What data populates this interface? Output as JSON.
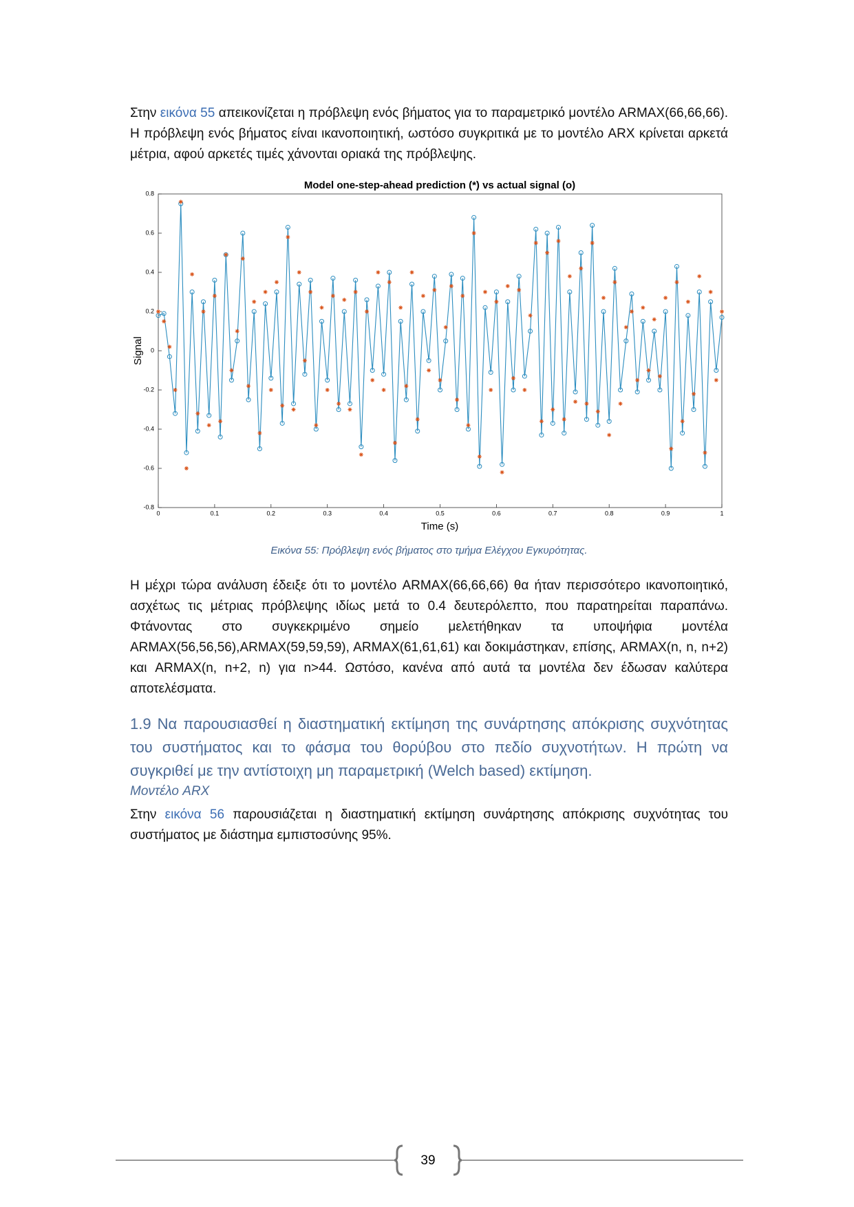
{
  "paragraph_1": {
    "lead": "Στην ",
    "link": "εικόνα 55",
    "rest": " απεικονίζεται η πρόβλεψη ενός βήματος για το παραμετρικό μοντέλο ARMAX(66,66,66). Η πρόβλεψη ενός βήματος είναι ικανοποιητική, ωστόσο συγκριτικά με το μοντέλο ARX κρίνεται αρκετά μέτρια, αφού αρκετές τιμές χάνονται οριακά της πρόβλεψης."
  },
  "chart_data": {
    "type": "line",
    "title": "Model one-step-ahead prediction (*) vs actual signal (o)",
    "x_label": "Time (s)",
    "y_label": "Signal",
    "x": [
      0,
      0.01,
      0.02,
      0.03,
      0.04,
      0.05,
      0.06,
      0.07,
      0.08,
      0.09,
      0.1,
      0.11,
      0.12,
      0.13,
      0.14,
      0.15,
      0.16,
      0.17,
      0.18,
      0.19,
      0.2,
      0.21,
      0.22,
      0.23,
      0.24,
      0.25,
      0.26,
      0.27,
      0.28,
      0.29,
      0.3,
      0.31,
      0.32,
      0.33,
      0.34,
      0.35,
      0.36,
      0.37,
      0.38,
      0.39,
      0.4,
      0.41,
      0.42,
      0.43,
      0.44,
      0.45,
      0.46,
      0.47,
      0.48,
      0.49,
      0.5,
      0.51,
      0.52,
      0.53,
      0.54,
      0.55,
      0.56,
      0.57,
      0.58,
      0.59,
      0.6,
      0.61,
      0.62,
      0.63,
      0.64,
      0.65,
      0.66,
      0.67,
      0.68,
      0.69,
      0.7,
      0.71,
      0.72,
      0.73,
      0.74,
      0.75,
      0.76,
      0.77,
      0.78,
      0.79,
      0.8,
      0.81,
      0.82,
      0.83,
      0.84,
      0.85,
      0.86,
      0.87,
      0.88,
      0.89,
      0.9,
      0.91,
      0.92,
      0.93,
      0.94,
      0.95,
      0.96,
      0.97,
      0.98,
      0.99,
      1
    ],
    "series": [
      {
        "color": "#2a8cbf",
        "marker": "circle",
        "values": [
          0.18,
          0.19,
          -0.03,
          -0.32,
          0.75,
          -0.52,
          0.3,
          -0.41,
          0.25,
          -0.33,
          0.36,
          -0.44,
          0.49,
          -0.15,
          0.05,
          0.6,
          -0.25,
          0.2,
          -0.5,
          0.24,
          -0.14,
          0.3,
          -0.37,
          0.63,
          -0.27,
          0.34,
          -0.12,
          0.36,
          -0.4,
          0.15,
          -0.15,
          0.37,
          -0.3,
          0.2,
          -0.27,
          0.36,
          -0.49,
          0.26,
          -0.1,
          0.33,
          -0.12,
          0.4,
          -0.56,
          0.15,
          -0.25,
          0.34,
          -0.41,
          0.2,
          -0.05,
          0.38,
          -0.2,
          0.05,
          0.39,
          -0.3,
          0.37,
          -0.4,
          0.68,
          -0.59,
          0.22,
          -0.11,
          0.3,
          -0.58,
          0.25,
          -0.2,
          0.38,
          -0.13,
          0.1,
          0.62,
          -0.43,
          0.6,
          -0.37,
          0.63,
          -0.42,
          0.3,
          -0.21,
          0.5,
          -0.35,
          0.64,
          -0.38,
          0.2,
          -0.36,
          0.42,
          -0.2,
          0.05,
          0.29,
          -0.21,
          0.15,
          -0.15,
          0.1,
          -0.2,
          0.2,
          -0.6,
          0.43,
          -0.42,
          0.18,
          -0.3,
          0.3,
          -0.59,
          0.25,
          -0.1,
          0.17
        ]
      },
      {
        "color": "#d95319",
        "marker": "asterisk",
        "values": [
          0.2,
          0.15,
          0.02,
          -0.2,
          0.76,
          -0.6,
          0.39,
          -0.32,
          0.2,
          -0.38,
          0.28,
          -0.36,
          0.49,
          -0.1,
          0.1,
          0.47,
          -0.18,
          0.25,
          -0.42,
          0.3,
          -0.2,
          0.35,
          -0.28,
          0.58,
          -0.3,
          0.4,
          -0.05,
          0.3,
          -0.38,
          0.22,
          -0.2,
          0.28,
          -0.27,
          0.26,
          -0.3,
          0.3,
          -0.53,
          0.2,
          -0.15,
          0.4,
          -0.2,
          0.35,
          -0.47,
          0.22,
          -0.18,
          0.4,
          -0.35,
          0.28,
          -0.1,
          0.31,
          -0.15,
          0.12,
          0.33,
          -0.25,
          0.28,
          -0.38,
          0.6,
          -0.54,
          0.3,
          -0.2,
          0.25,
          -0.62,
          0.33,
          -0.14,
          0.31,
          -0.2,
          0.18,
          0.55,
          -0.36,
          0.5,
          -0.3,
          0.56,
          -0.35,
          0.38,
          -0.26,
          0.42,
          -0.27,
          0.55,
          -0.31,
          0.27,
          -0.43,
          0.35,
          -0.27,
          0.12,
          0.2,
          -0.15,
          0.22,
          -0.1,
          0.16,
          -0.13,
          0.27,
          -0.5,
          0.35,
          -0.36,
          0.25,
          -0.22,
          0.38,
          -0.52,
          0.3,
          -0.15,
          0.2
        ]
      }
    ],
    "xlim": [
      0,
      1
    ],
    "xticks": [
      0,
      0.1,
      0.2,
      0.3,
      0.4,
      0.5,
      0.6,
      0.7,
      0.8,
      0.9,
      1
    ],
    "ylim": [
      -0.8,
      0.8
    ],
    "yticks": [
      -0.8,
      -0.6,
      -0.4,
      -0.2,
      0,
      0.2,
      0.4,
      0.6,
      0.8
    ]
  },
  "caption": "Εικόνα 55: Πρόβλεψη ενός βήματος στο τμήμα Ελέγχου Εγκυρότητας.",
  "paragraph_2": "Η μέχρι τώρα ανάλυση έδειξε ότι το μοντέλο ARMAX(66,66,66) θα ήταν περισσότερο ικανοποιητικό, ασχέτως τις μέτριας πρόβλεψης ιδίως μετά το 0.4 δευτερόλεπτο, που παρατηρείται παραπάνω. Φτάνοντας στο συγκεκριμένο σημείο μελετήθηκαν τα υποψήφια μοντέλα ARMAX(56,56,56),ARMAX(59,59,59), ARMAX(61,61,61) και δοκιμάστηκαν, επίσης, ARMAX(n, n, n+2) και ARMAX(n, n+2, n) για n>44. Ωστόσο, κανένα από αυτά τα μοντέλα δεν έδωσαν καλύτερα αποτελέσματα.",
  "heading": "1.9 Να παρουσιασθεί η διαστηματική εκτίμηση της συνάρτησης απόκρισης συχνότητας του συστήματος και το φάσμα του θορύβου στο πεδίο συχνοτήτων. Η πρώτη να συγκριθεί με την αντίστοιχη μη παραμετρική (Welch based) εκτίμηση.",
  "subheading": "Μοντέλο ARX",
  "paragraph_3": {
    "lead": "Στην ",
    "link": "εικόνα 56",
    "rest": " παρουσιάζεται η διαστηματική εκτίμηση συνάρτησης απόκρισης συχνότητας του συστήματος με διάστημα εμπιστοσύνης 95%."
  },
  "page_number": "39"
}
